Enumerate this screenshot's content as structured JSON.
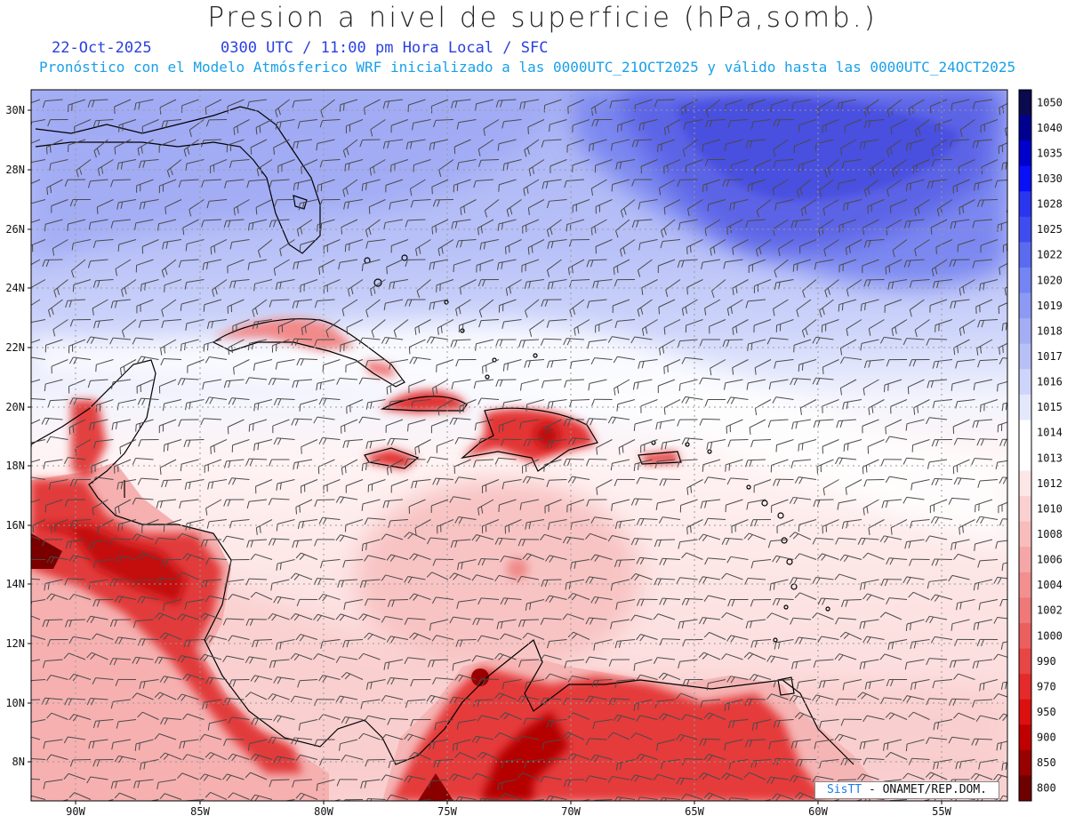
{
  "title": "Presion a nivel de superficie (hPa,somb.)",
  "date": "22-Oct-2025",
  "time_info": "0300 UTC / 11:00 pm Hora Local / SFC",
  "forecast_info": "Pronóstico con el Modelo Atmósferico WRF inicializado a las 0000UTC_21OCT2025 y válido hasta las  0000UTC_24OCT2025",
  "credit": {
    "brand": "SisTT",
    "text": " - ONAMET/REP.DOM."
  },
  "lat_labels": [
    "30N",
    "28N",
    "26N",
    "24N",
    "22N",
    "20N",
    "18N",
    "16N",
    "14N",
    "12N",
    "10N",
    "8N"
  ],
  "lon_labels": [
    "90W",
    "85W",
    "80W",
    "75W",
    "70W",
    "65W",
    "60W",
    "55W"
  ],
  "legend": {
    "levels": [
      "1050",
      "1040",
      "1035",
      "1030",
      "1028",
      "1025",
      "1022",
      "1020",
      "1019",
      "1018",
      "1017",
      "1016",
      "1015",
      "1014",
      "1013",
      "1012",
      "1010",
      "1008",
      "1006",
      "1004",
      "1002",
      "1000",
      "990",
      "970",
      "950",
      "900",
      "850",
      "800"
    ],
    "colors": [
      "#0a0a4e",
      "#000090",
      "#0000cc",
      "#0a10f5",
      "#2a35f0",
      "#3e4cf0",
      "#5a6bf0",
      "#7484f3",
      "#8c9af4",
      "#a3aef5",
      "#b8c1f7",
      "#ced5fa",
      "#e4e8fc",
      "#ffffff",
      "#ffffff",
      "#fde6e6",
      "#fbd0d0",
      "#f8bcbc",
      "#f5a6a6",
      "#f28f8f",
      "#ef7878",
      "#ec5f5f",
      "#e84545",
      "#e42a2a",
      "#dd1010",
      "#c00000",
      "#990000",
      "#6e0000"
    ]
  },
  "colors": {
    "high": "#5b63e6",
    "low": "#d41515",
    "land_outline": "#000000",
    "barb": "#4a4a4a"
  }
}
